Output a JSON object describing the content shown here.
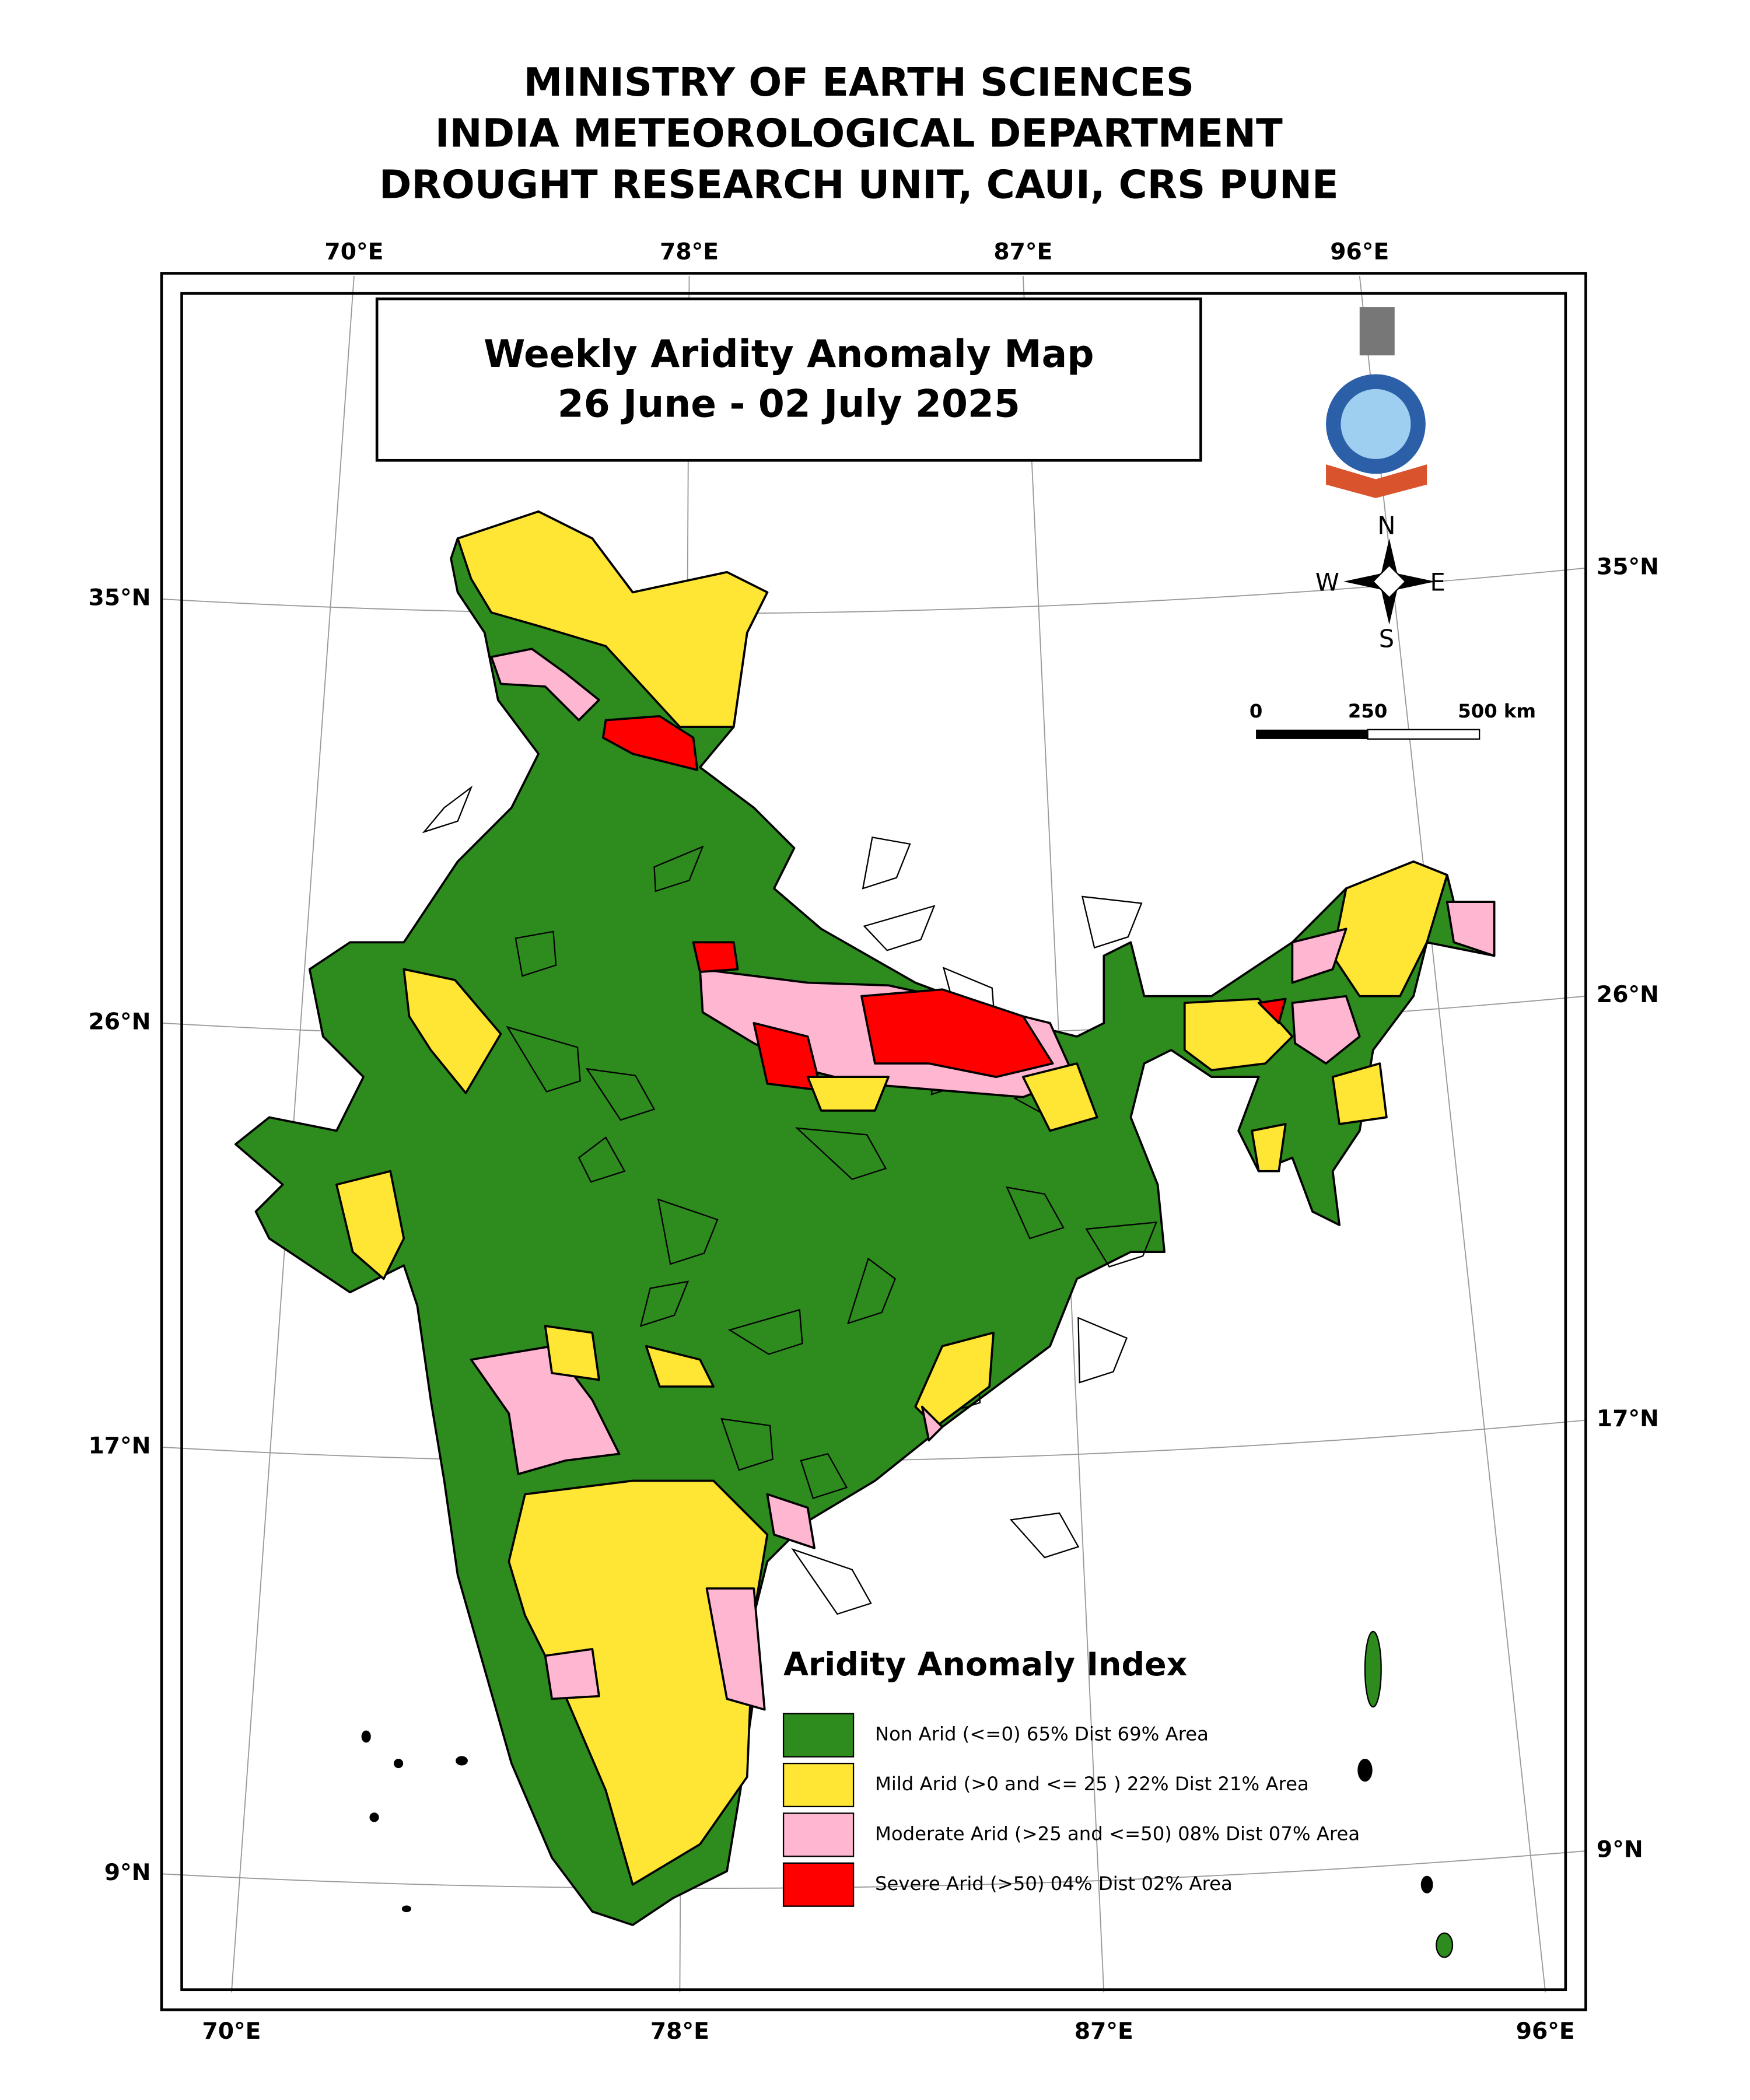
{
  "header": {
    "lines": [
      "MINISTRY OF EARTH SCIENCES",
      "INDIA METEOROLOGICAL DEPARTMENT",
      "DROUGHT RESEARCH UNIT, CAUI, CRS PUNE"
    ]
  },
  "map_title": {
    "title": "Weekly Aridity Anomaly Map",
    "period": "26 June - 02 July  2025"
  },
  "graticule": {
    "top_labels": [
      "70°E",
      "78°E",
      "87°E",
      "96°E"
    ],
    "bottom_labels": [
      "70°E",
      "78°E",
      "87°E",
      "96°E"
    ],
    "left_labels": [
      "35°N",
      "26°N",
      "17°N",
      "9°N"
    ],
    "right_labels": [
      "35°N",
      "26°N",
      "17°N",
      "9°N"
    ]
  },
  "scale_bar": {
    "labels": [
      "0",
      "250",
      "500 km"
    ]
  },
  "compass": {
    "north": "N",
    "west": "W",
    "east": "E",
    "south": "S"
  },
  "legend": {
    "title": "Aridity Anomaly Index",
    "items": [
      {
        "label": "Non Arid (<=0) 65% Dist 69% Area",
        "color": "#2e8b1e"
      },
      {
        "label": "Mild Arid (>0 and <= 25 ) 22% Dist  21% Area",
        "color": "#ffe635"
      },
      {
        "label": "Moderate Arid (>25 and <=50) 08% Dist  07% Area",
        "color": "#ffb6d0"
      },
      {
        "label": "Severe Arid (>50) 04% Dist  02% Area",
        "color": "#ff0000"
      }
    ]
  }
}
